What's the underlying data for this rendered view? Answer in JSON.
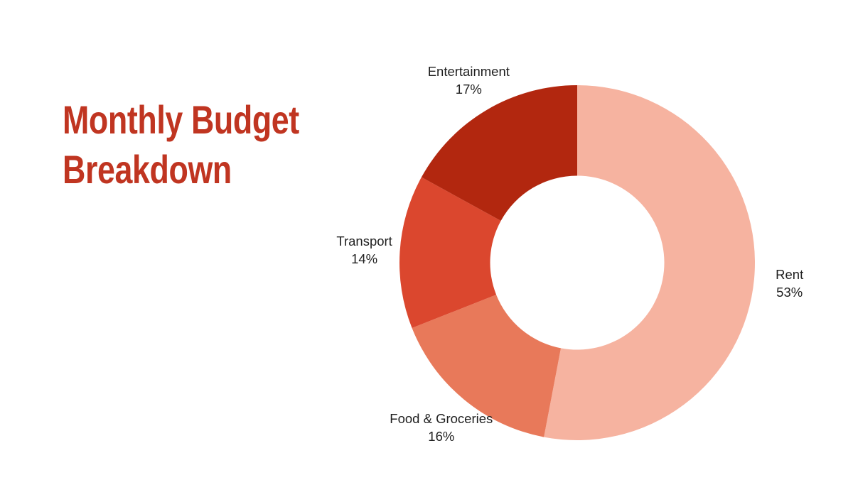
{
  "title": {
    "line1": "Monthly Budget",
    "line2": "Breakdown",
    "color": "#C03521"
  },
  "chart_data": {
    "type": "pie",
    "subtype": "donut",
    "title": "Monthly Budget Breakdown",
    "unit": "%",
    "start_angle_deg": 0,
    "direction": "clockwise",
    "inner_radius_ratio": 0.49,
    "legend": "none",
    "label_position": "outside",
    "label_color": "#1f1f1f",
    "background_color": "#ffffff",
    "categories": [
      "Rent",
      "Food & Groceries",
      "Transport",
      "Entertainment"
    ],
    "values": [
      53,
      16,
      14,
      17
    ],
    "slices": [
      {
        "label": "Rent",
        "value": 53,
        "display": "53%",
        "color": "#F6B3A0"
      },
      {
        "label": "Food & Groceries",
        "value": 16,
        "display": "16%",
        "color": "#E8795A"
      },
      {
        "label": "Transport",
        "value": 14,
        "display": "14%",
        "color": "#DB472E"
      },
      {
        "label": "Entertainment",
        "value": 17,
        "display": "17%",
        "color": "#B2270F"
      }
    ]
  }
}
